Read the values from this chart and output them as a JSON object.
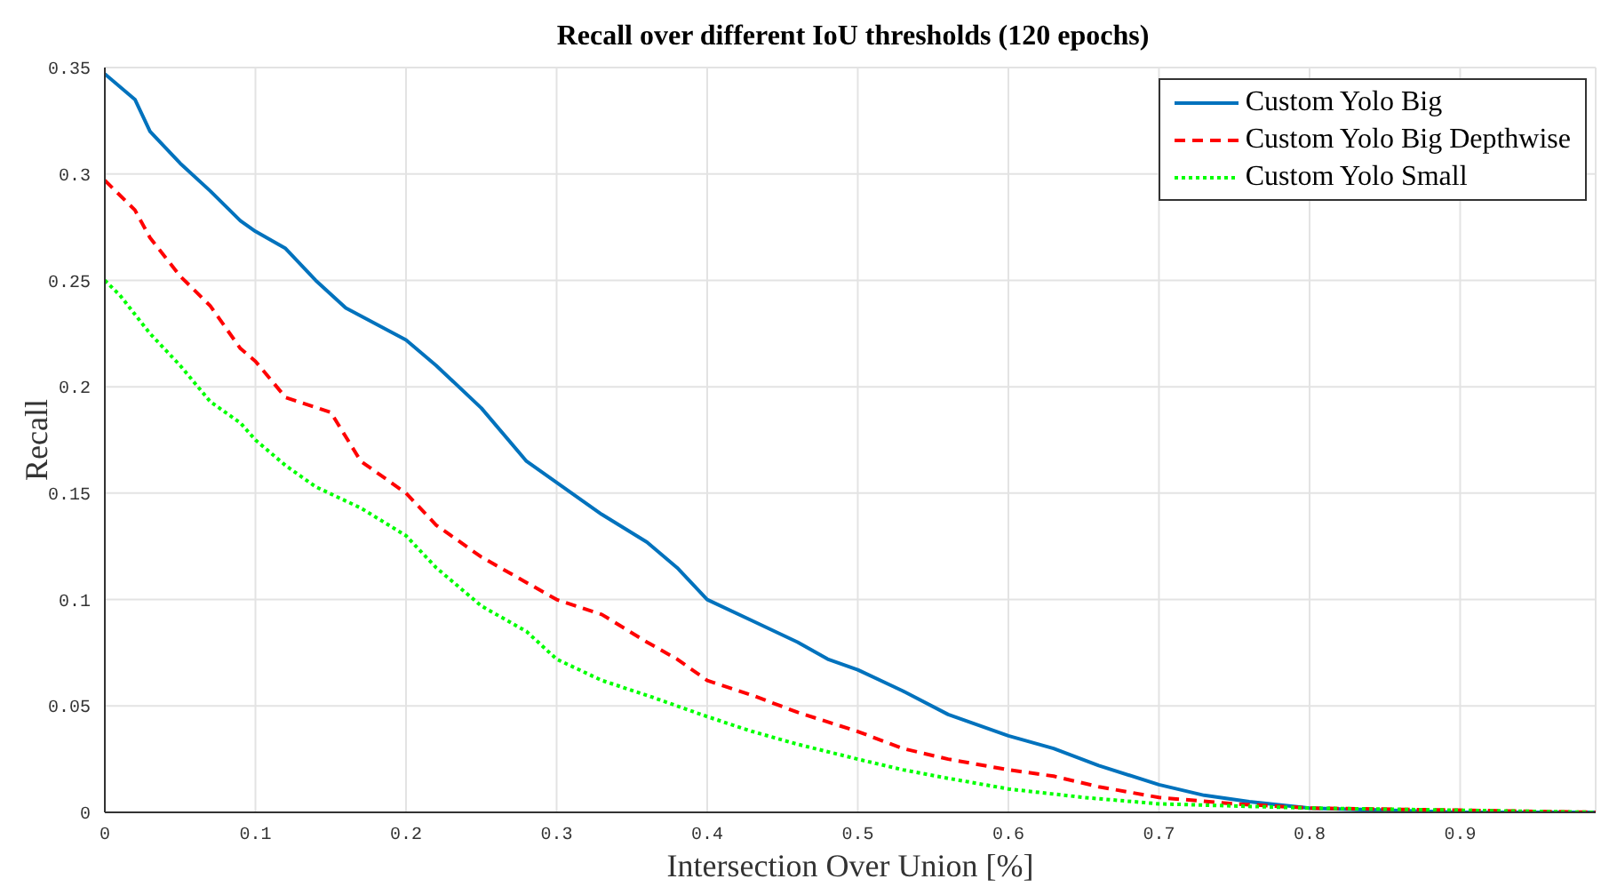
{
  "chart_data": {
    "type": "line",
    "title": "Recall over different IoU thresholds (120 epochs)",
    "xlabel": "Intersection Over Union [%]",
    "ylabel": "Recall",
    "xlim": [
      0,
      0.99
    ],
    "ylim": [
      0,
      0.35
    ],
    "xticks": [
      0,
      0.1,
      0.2,
      0.3,
      0.4,
      0.5,
      0.6,
      0.7,
      0.8,
      0.9
    ],
    "yticks": [
      0,
      0.05,
      0.1,
      0.15,
      0.2,
      0.25,
      0.3,
      0.35
    ],
    "grid": true,
    "legend": "top right",
    "marker": "none",
    "x": [
      0,
      0.02,
      0.03,
      0.05,
      0.07,
      0.09,
      0.1,
      0.12,
      0.14,
      0.16,
      0.2,
      0.22,
      0.25,
      0.28,
      0.3,
      0.33,
      0.36,
      0.38,
      0.4,
      0.43,
      0.46,
      0.48,
      0.5,
      0.53,
      0.56,
      0.6,
      0.63,
      0.66,
      0.7,
      0.73,
      0.76,
      0.8,
      0.85,
      0.9,
      0.99
    ],
    "series": [
      {
        "name": "Custom Yolo Big",
        "color": "#0072bd",
        "line_style": "solid",
        "values": [
          0.347,
          0.335,
          0.32,
          0.305,
          0.292,
          0.278,
          0.273,
          0.265,
          0.25,
          0.237,
          0.222,
          0.21,
          0.19,
          0.165,
          0.155,
          0.14,
          0.127,
          0.115,
          0.1,
          0.09,
          0.08,
          0.072,
          0.067,
          0.057,
          0.046,
          0.036,
          0.03,
          0.022,
          0.013,
          0.008,
          0.005,
          0.002,
          0.001,
          0,
          0
        ]
      },
      {
        "name": "Custom Yolo Big Depthwise",
        "color": "#ff0000",
        "line_style": "dashed",
        "x": [
          0,
          0.02,
          0.03,
          0.05,
          0.07,
          0.09,
          0.1,
          0.12,
          0.15,
          0.17,
          0.2,
          0.22,
          0.25,
          0.28,
          0.3,
          0.33,
          0.36,
          0.38,
          0.4,
          0.43,
          0.46,
          0.5,
          0.53,
          0.56,
          0.6,
          0.63,
          0.66,
          0.7,
          0.75,
          0.8,
          0.9,
          0.99
        ],
        "values": [
          0.297,
          0.283,
          0.27,
          0.252,
          0.238,
          0.218,
          0.212,
          0.195,
          0.188,
          0.165,
          0.15,
          0.135,
          0.12,
          0.108,
          0.1,
          0.093,
          0.08,
          0.072,
          0.062,
          0.055,
          0.047,
          0.038,
          0.03,
          0.025,
          0.02,
          0.017,
          0.012,
          0.007,
          0.004,
          0.002,
          0.001,
          0
        ]
      },
      {
        "name": "Custom Yolo Small",
        "color": "#00ff00",
        "line_style": "dotted",
        "x": [
          0,
          0.01,
          0.03,
          0.05,
          0.07,
          0.09,
          0.1,
          0.12,
          0.14,
          0.17,
          0.2,
          0.22,
          0.25,
          0.28,
          0.3,
          0.33,
          0.36,
          0.4,
          0.43,
          0.46,
          0.5,
          0.53,
          0.56,
          0.6,
          0.65,
          0.7,
          0.8,
          0.9,
          0.99
        ],
        "values": [
          0.25,
          0.243,
          0.225,
          0.21,
          0.193,
          0.183,
          0.175,
          0.163,
          0.153,
          0.143,
          0.13,
          0.115,
          0.097,
          0.085,
          0.072,
          0.062,
          0.055,
          0.045,
          0.038,
          0.032,
          0.025,
          0.02,
          0.016,
          0.011,
          0.007,
          0.004,
          0.002,
          0.001,
          0
        ]
      }
    ]
  }
}
